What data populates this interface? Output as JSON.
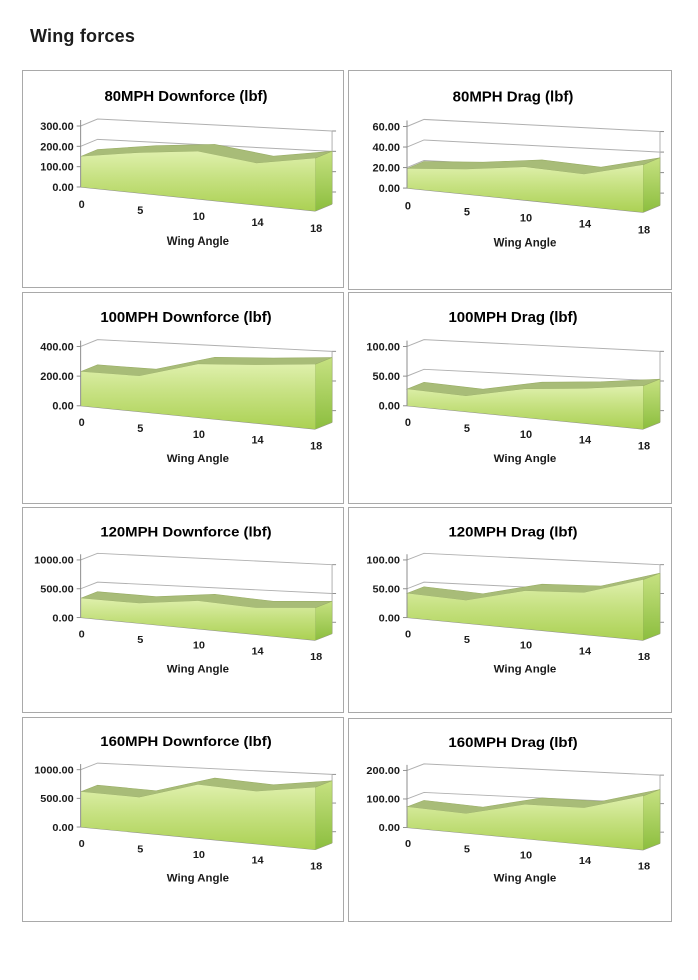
{
  "page": {
    "title": "Wing forces"
  },
  "colors": {
    "area_front_top": "#dff0ac",
    "area_front_mid": "#c6e181",
    "area_front_bottom": "#abd153",
    "area_side_top": "#c6e181",
    "area_side_bottom": "#8cbe3e",
    "area_ridge": "#a8bc78",
    "area_ridge_edge": "#99ad66",
    "gridline": "#b0b0b0",
    "axis": "#8c8c8c",
    "tick_text": "#1a1a1a",
    "title_text": "#000000",
    "panel_border": "#a9a9a9"
  },
  "chart_data": [
    {
      "type": "area",
      "title": "80MPH Downforce (lbf)",
      "xlabel": "Wing Angle",
      "categories": [
        0,
        5,
        10,
        14,
        18
      ],
      "values": [
        150,
        180,
        195,
        158,
        185
      ],
      "y_ticks": [
        "0.00",
        "100.00",
        "200.00",
        "300.00"
      ],
      "y_max": 300,
      "legend": "none",
      "grid": "horizontal-3d"
    },
    {
      "type": "area",
      "title": "80MPH Drag (lbf)",
      "xlabel": "Wing Angle",
      "categories": [
        0,
        5,
        10,
        14,
        18
      ],
      "values": [
        19,
        22,
        27,
        24,
        33
      ],
      "y_ticks": [
        "0.00",
        "20.00",
        "40.00",
        "60.00"
      ],
      "y_max": 60,
      "legend": "none",
      "grid": "horizontal-3d"
    },
    {
      "type": "area",
      "title": "100MPH Downforce (lbf)",
      "xlabel": "Wing Angle",
      "categories": [
        0,
        5,
        10,
        14,
        18
      ],
      "values": [
        230,
        218,
        300,
        303,
        312
      ],
      "y_ticks": [
        "0.00",
        "200.00",
        "400.00"
      ],
      "y_max": 400,
      "legend": "none",
      "grid": "horizontal-3d"
    },
    {
      "type": "area",
      "title": "100MPH Drag (lbf)",
      "xlabel": "Wing Angle",
      "categories": [
        0,
        5,
        10,
        14,
        18
      ],
      "values": [
        28,
        24,
        40,
        45,
        52
      ],
      "y_ticks": [
        "0.00",
        "50.00",
        "100.00"
      ],
      "y_max": 100,
      "legend": "none",
      "grid": "horizontal-3d"
    },
    {
      "type": "area",
      "title": "120MPH Downforce (lbf)",
      "xlabel": "Wing Angle",
      "categories": [
        0,
        5,
        10,
        14,
        18
      ],
      "values": [
        335,
        315,
        405,
        355,
        400
      ],
      "y_ticks": [
        "0.00",
        "500.00",
        "1000.00"
      ],
      "y_max": 1000,
      "legend": "none",
      "grid": "horizontal-3d"
    },
    {
      "type": "area",
      "title": "120MPH Drag (lbf)",
      "xlabel": "Wing Angle",
      "categories": [
        0,
        5,
        10,
        14,
        18
      ],
      "values": [
        42,
        36,
        55,
        56,
        75
      ],
      "y_ticks": [
        "0.00",
        "50.00",
        "100.00"
      ],
      "y_max": 100,
      "legend": "none",
      "grid": "horizontal-3d"
    },
    {
      "type": "area",
      "title": "160MPH Downforce (lbf)",
      "xlabel": "Wing Angle",
      "categories": [
        0,
        5,
        10,
        14,
        18
      ],
      "values": [
        615,
        560,
        780,
        705,
        775
      ],
      "y_ticks": [
        "0.00",
        "500.00",
        "1000.00"
      ],
      "y_max": 1000,
      "legend": "none",
      "grid": "horizontal-3d"
    },
    {
      "type": "area",
      "title": "160MPH Drag (lbf)",
      "xlabel": "Wing Angle",
      "categories": [
        0,
        5,
        10,
        14,
        18
      ],
      "values": [
        72,
        62,
        100,
        98,
        135
      ],
      "y_ticks": [
        "0.00",
        "100.00",
        "200.00"
      ],
      "y_max": 200,
      "legend": "none",
      "grid": "horizontal-3d"
    }
  ]
}
